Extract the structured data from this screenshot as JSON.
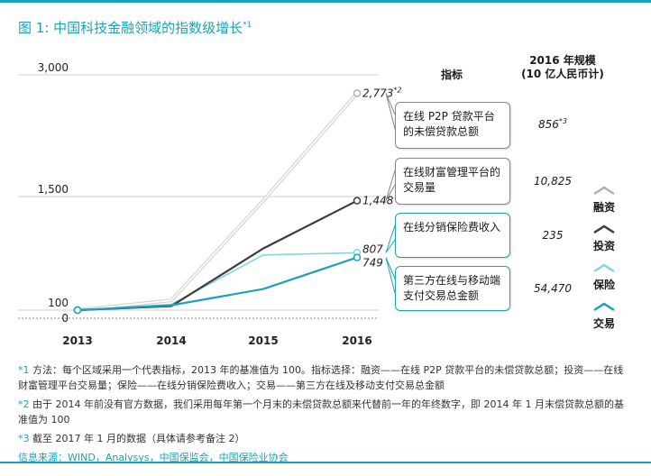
{
  "title": "图 1: 中国科技金融领域的指数级增长",
  "title_note": "*1",
  "header": {
    "indicator": "指标",
    "scale_line1": "2016 年规模",
    "scale_line2": "(10 亿人民币计)"
  },
  "rows": [
    {
      "indicator": "在线 P2P 贷款平台的未偿贷款总额",
      "value": "856",
      "value_note": "*3",
      "legend": "融资",
      "color": "#b0b0b0"
    },
    {
      "indicator": "在线财富管理平台的交易量",
      "value": "10,825",
      "value_note": "",
      "legend": "投资",
      "color": "#3d3d3d"
    },
    {
      "indicator": "在线分销保险费收入",
      "value": "235",
      "value_note": "",
      "legend": "保险",
      "color": "#7fd6e3"
    },
    {
      "indicator": "第三方在线与移动端支付交易总金额",
      "value": "54,470",
      "value_note": "",
      "legend": "交易",
      "color": "#1aa3b8"
    }
  ],
  "chart_data": {
    "type": "line",
    "x": [
      "2013",
      "2014",
      "2015",
      "2016"
    ],
    "yticks": [
      "0",
      "100",
      "1,500",
      "3,000"
    ],
    "ylim": [
      0,
      3000
    ],
    "grid": true,
    "series": [
      {
        "name": "融资",
        "values": [
          100,
          220,
          1450,
          2773
        ],
        "end_label": "2,773",
        "end_note": "*2",
        "color": "#b0b0b0"
      },
      {
        "name": "投资",
        "values": [
          100,
          150,
          860,
          1448
        ],
        "end_label": "1,448",
        "end_note": "",
        "color": "#3d3d3d"
      },
      {
        "name": "保险",
        "values": [
          100,
          170,
          780,
          807
        ],
        "end_label": "807",
        "end_note": "",
        "color": "#7fd6e3"
      },
      {
        "name": "交易",
        "values": [
          100,
          160,
          360,
          749
        ],
        "end_label": "749",
        "end_note": "",
        "color": "#1aa3b8"
      }
    ]
  },
  "notes": [
    {
      "mark": "*1",
      "text": "方法：每个区域采用一个代表指标，2013 年的基准值为 100。指标选择：融资——在线 P2P 贷款平台的未偿贷款总额；投资——在线财富管理平台交易量；保险——在线分销保险费收入；交易——第三方在线及移动支付交易总金额"
    },
    {
      "mark": "*2",
      "text": "由于 2014 年前没有官方数据，我们采用每年第一个月末的未偿贷款总额来代替前一年的年终数字，即 2014 年 1 月末偿贷款总额的基准值为 100"
    },
    {
      "mark": "*3",
      "text": "截至 2017 年 1 月的数据（具体请参考备注 2）"
    }
  ],
  "source": "信息来源：WIND，Analysys，中国保监会，中国保险业协会"
}
